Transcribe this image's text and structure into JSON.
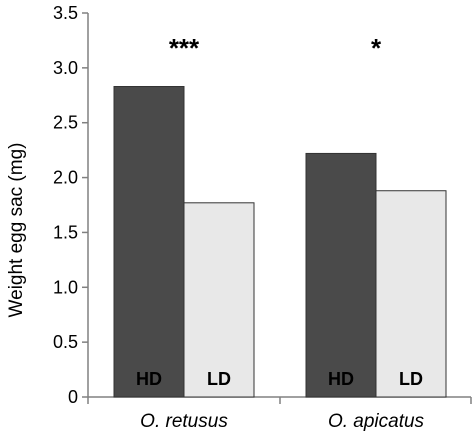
{
  "chart_data": {
    "type": "bar",
    "ylabel": "Weight egg sac (mg)",
    "ylim": [
      0,
      3.5
    ],
    "yticks": [
      "0",
      "0.5",
      "1.0",
      "1.5",
      "2.0",
      "2.5",
      "3.0",
      "3.5"
    ],
    "categories": [
      "O. retusus",
      "O. apicatus"
    ],
    "series": [
      {
        "name": "HD",
        "color": "#4a4a4a",
        "values": [
          2.83,
          2.22
        ]
      },
      {
        "name": "LD",
        "color": "#e8e8e8",
        "values": [
          1.77,
          1.88
        ]
      }
    ],
    "significance": [
      "***",
      "*"
    ],
    "grid": false
  }
}
